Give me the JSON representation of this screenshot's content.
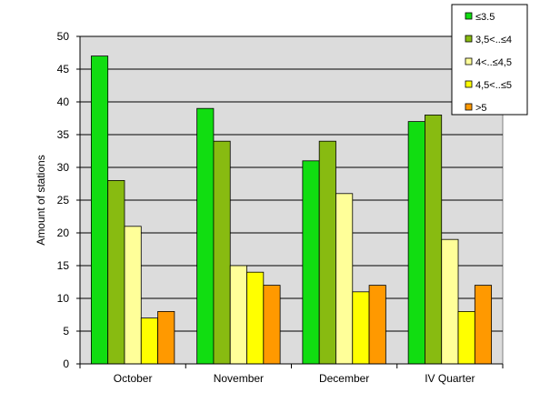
{
  "chart_data": {
    "type": "bar",
    "title": "",
    "xlabel": "",
    "ylabel": "Amount of stations",
    "ylim": [
      0,
      50
    ],
    "yticks": [
      0,
      5,
      10,
      15,
      20,
      25,
      30,
      35,
      40,
      45,
      50
    ],
    "grid": true,
    "legend_position": "top-right",
    "plot_background": "#dcdcdc",
    "categories": [
      "October",
      "November",
      "December",
      "IV Quarter"
    ],
    "series": [
      {
        "name": "≤3.5",
        "color": "#11dd11",
        "values": [
          47,
          39,
          31,
          37
        ]
      },
      {
        "name": "3,5<..≤4",
        "color": "#88bb11",
        "values": [
          28,
          34,
          34,
          38
        ]
      },
      {
        "name": "4<..≤4,5",
        "color": "#ffff99",
        "values": [
          21,
          15,
          26,
          19
        ]
      },
      {
        "name": "4,5<..≤5",
        "color": "#ffff00",
        "values": [
          7,
          14,
          11,
          8
        ]
      },
      {
        "name": ">5",
        "color": "#ff9900",
        "values": [
          8,
          12,
          12,
          12
        ]
      }
    ]
  }
}
